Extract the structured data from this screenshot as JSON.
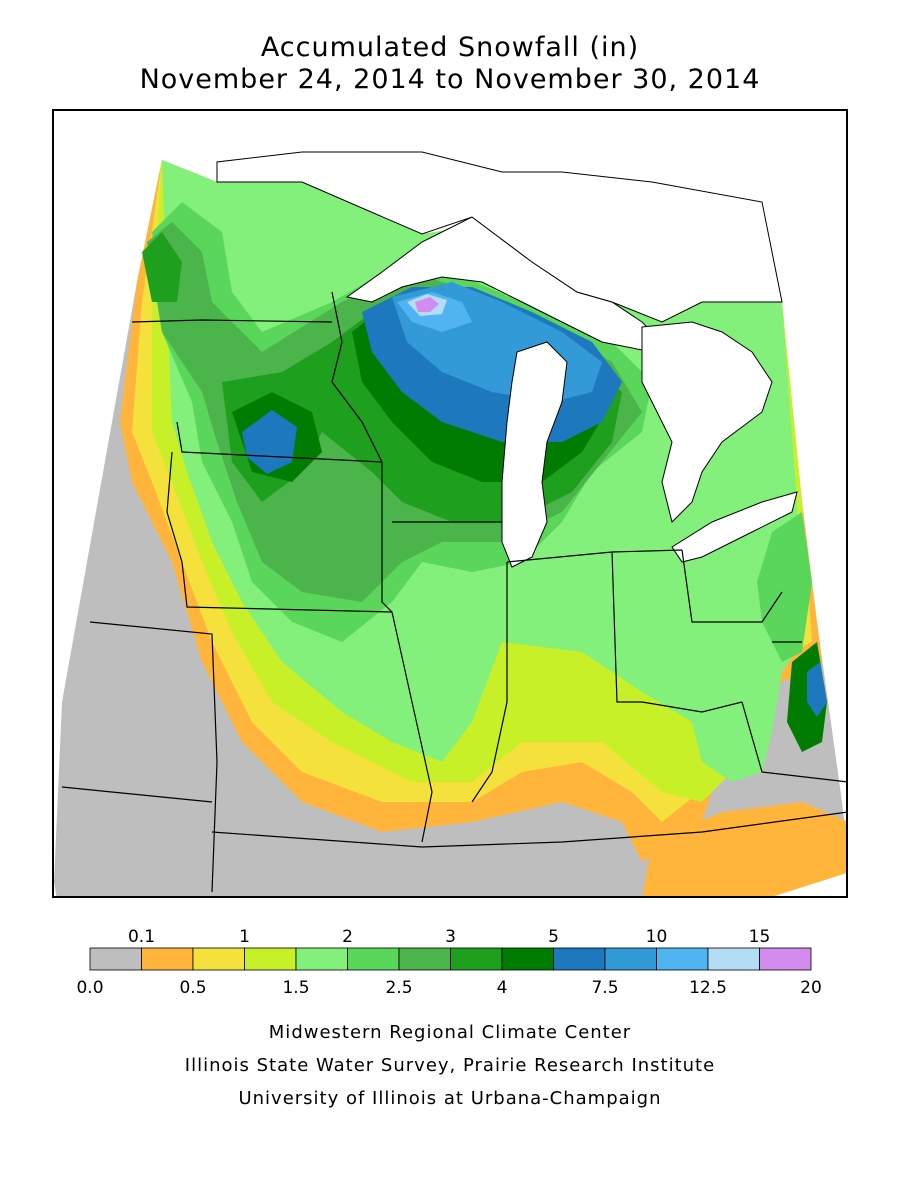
{
  "title": {
    "line1": "Accumulated Snowfall (in)",
    "line2": "November 24, 2014 to November 30, 2014"
  },
  "legend": {
    "bins": [
      {
        "color": "#bebebe"
      },
      {
        "color": "#ffb43c"
      },
      {
        "color": "#f5e13c"
      },
      {
        "color": "#c8f028"
      },
      {
        "color": "#82f07a"
      },
      {
        "color": "#5ad75a"
      },
      {
        "color": "#4bb44b"
      },
      {
        "color": "#1ea01e"
      },
      {
        "color": "#007d00"
      },
      {
        "color": "#1e78be"
      },
      {
        "color": "#329bd7"
      },
      {
        "color": "#50b4f0"
      },
      {
        "color": "#b4dcf5"
      },
      {
        "color": "#d28cf0"
      }
    ],
    "top_labels": [
      "0.1",
      "1",
      "2",
      "3",
      "5",
      "10",
      "15"
    ],
    "bottom_labels": [
      "0.0",
      "0.5",
      "1.5",
      "2.5",
      "4",
      "7.5",
      "12.5",
      "20"
    ]
  },
  "credits": [
    "Midwestern Regional Climate Center",
    "Illinois State Water Survey, Prairie Research Institute",
    "University of Illinois at Urbana-Champaign"
  ]
}
